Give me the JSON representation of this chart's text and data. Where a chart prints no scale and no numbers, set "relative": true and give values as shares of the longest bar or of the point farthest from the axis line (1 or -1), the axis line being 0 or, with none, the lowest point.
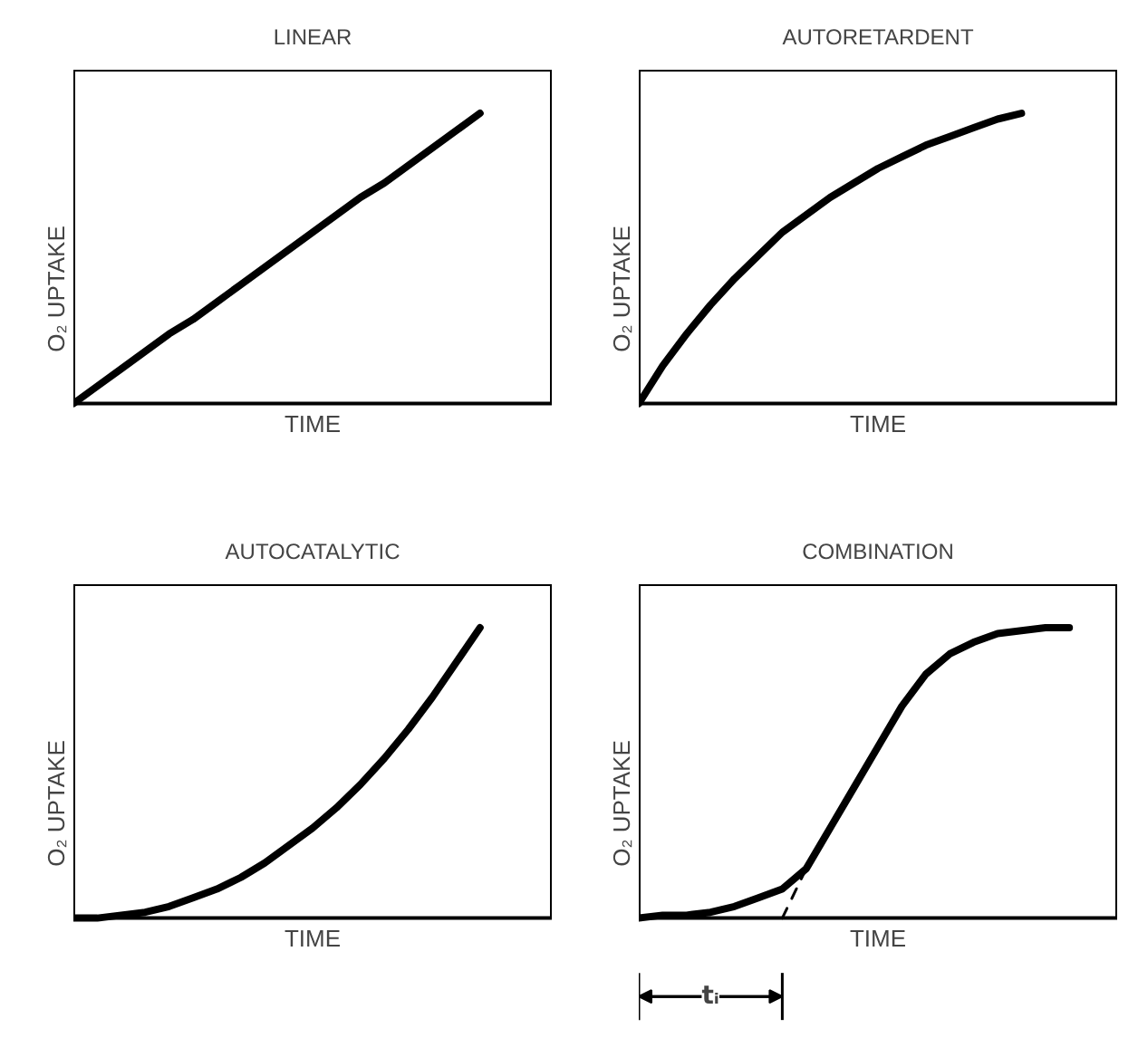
{
  "chart_data": [
    {
      "type": "line",
      "title": "LINEAR",
      "xlabel": "TIME",
      "ylabel": "O₂ UPTAKE",
      "relative": true,
      "categories": [
        null,
        null,
        null,
        null,
        null,
        null,
        null,
        null,
        null,
        null,
        null,
        null,
        null,
        null,
        null,
        null,
        null,
        null,
        null,
        null,
        null
      ],
      "series": [
        {
          "color": "#000000",
          "values": [
            0,
            0.06,
            0.12,
            0.18,
            0.24,
            0.29,
            0.35,
            0.41,
            0.47,
            0.53,
            0.59,
            0.65,
            0.71,
            0.76,
            0.82,
            0.88,
            0.94,
            1,
            null,
            null,
            null
          ]
        }
      ]
    },
    {
      "type": "line",
      "title": "AUTORETARDENT",
      "xlabel": "TIME",
      "ylabel": "O₂ UPTAKE",
      "relative": true,
      "categories": [
        null,
        null,
        null,
        null,
        null,
        null,
        null,
        null,
        null,
        null,
        null,
        null,
        null,
        null,
        null,
        null,
        null,
        null,
        null,
        null,
        null
      ],
      "series": [
        {
          "color": "#000000",
          "values": [
            0,
            0.13,
            0.24,
            0.34,
            0.43,
            0.51,
            0.59,
            0.65,
            0.71,
            0.76,
            0.81,
            0.85,
            0.89,
            0.92,
            0.95,
            0.98,
            1,
            null,
            null,
            null,
            null
          ]
        }
      ]
    },
    {
      "type": "line",
      "title": "AUTOCATALYTIC",
      "xlabel": "TIME",
      "ylabel": "O₂ UPTAKE",
      "relative": true,
      "categories": [
        null,
        null,
        null,
        null,
        null,
        null,
        null,
        null,
        null,
        null,
        null,
        null,
        null,
        null,
        null,
        null,
        null,
        null,
        null,
        null,
        null
      ],
      "series": [
        {
          "color": "#000000",
          "values": [
            0,
            0,
            0.01,
            0.02,
            0.04,
            0.07,
            0.1,
            0.14,
            0.19,
            0.25,
            0.31,
            0.38,
            0.46,
            0.55,
            0.65,
            0.76,
            0.88,
            1,
            null,
            null,
            null
          ]
        }
      ]
    },
    {
      "type": "line",
      "title": "COMBINATION",
      "xlabel": "TIME",
      "ylabel": "O₂ UPTAKE",
      "relative": true,
      "annotations": [
        "tᵢ"
      ],
      "categories": [
        null,
        null,
        null,
        null,
        null,
        null,
        null,
        null,
        null,
        null,
        null,
        null,
        null,
        null,
        null,
        null,
        null,
        null,
        null,
        null,
        null
      ],
      "series": [
        {
          "color": "#000000",
          "values": [
            0,
            0.01,
            0.01,
            0.02,
            0.04,
            0.07,
            0.1,
            0.17,
            0.31,
            0.45,
            0.59,
            0.73,
            0.84,
            0.91,
            0.95,
            0.98,
            0.99,
            1,
            1,
            null,
            null
          ]
        },
        {
          "color": "#000000",
          "line_style": "dashed",
          "values": [
            null,
            null,
            null,
            null,
            null,
            null,
            0,
            0.17,
            null,
            null,
            null,
            null,
            null,
            null,
            null,
            null,
            null,
            null,
            null,
            null,
            null
          ]
        }
      ]
    }
  ]
}
